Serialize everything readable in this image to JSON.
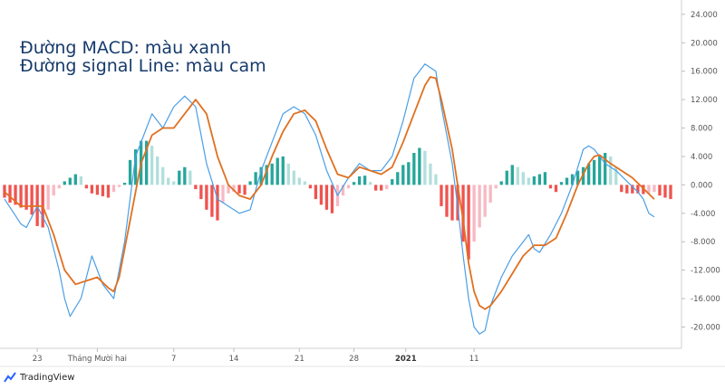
{
  "legend": {
    "macd_text": "Đường MACD: màu xanh",
    "signal_text": "Đường signal Line: màu cam"
  },
  "brand": {
    "name": "TradingView"
  },
  "colors": {
    "macd": "#4a9ee6",
    "signal": "#e07020",
    "hist_pos_strong": "#26a69a",
    "hist_pos_weak": "#b2dfdb",
    "hist_neg_strong": "#ef5350",
    "hist_neg_weak": "#f7b9c3",
    "grid": "#e8e8e8",
    "axis_text": "#555555"
  },
  "chart_data": {
    "type": "line",
    "grid": false,
    "ylim": [
      -23,
      25
    ],
    "y_ticks": [
      "24.000",
      "20.000",
      "16.000",
      "12.000",
      "8.000",
      "4.000",
      "0.000",
      "-4.000",
      "-8.000",
      "-12.000",
      "-16.000",
      "-20.000"
    ],
    "x_ticks": [
      {
        "label": "23",
        "x": 6,
        "bold": false
      },
      {
        "label": "Tháng Mười hai",
        "x": 17,
        "bold": false
      },
      {
        "label": "7",
        "x": 31,
        "bold": false
      },
      {
        "label": "14",
        "x": 42,
        "bold": false
      },
      {
        "label": "21",
        "x": 54,
        "bold": false
      },
      {
        "label": "28",
        "x": 64,
        "bold": false
      },
      {
        "label": "2021",
        "x": 73.5,
        "bold": true
      },
      {
        "label": "11",
        "x": 86,
        "bold": false
      }
    ],
    "x_range": [
      0,
      122
    ],
    "series": [
      {
        "key": "macd",
        "points": [
          [
            0,
            -2
          ],
          [
            3,
            -5.5
          ],
          [
            4,
            -6
          ],
          [
            6,
            -3
          ],
          [
            8,
            -6
          ],
          [
            10,
            -12
          ],
          [
            11,
            -16
          ],
          [
            12,
            -18.5
          ],
          [
            14,
            -16
          ],
          [
            16,
            -10
          ],
          [
            17,
            -12
          ],
          [
            18,
            -14
          ],
          [
            20,
            -16
          ],
          [
            22,
            -8
          ],
          [
            24,
            4
          ],
          [
            27,
            10
          ],
          [
            29,
            8
          ],
          [
            31,
            11
          ],
          [
            33,
            12.5
          ],
          [
            35,
            11
          ],
          [
            37,
            3
          ],
          [
            39,
            -2
          ],
          [
            41,
            -3
          ],
          [
            43,
            -4
          ],
          [
            45,
            -3.5
          ],
          [
            47,
            2
          ],
          [
            49,
            6
          ],
          [
            51,
            10
          ],
          [
            53,
            11
          ],
          [
            55,
            10
          ],
          [
            57,
            7
          ],
          [
            59,
            2
          ],
          [
            61,
            -1.5
          ],
          [
            63,
            1
          ],
          [
            65,
            3
          ],
          [
            67,
            2
          ],
          [
            69,
            2
          ],
          [
            71,
            4
          ],
          [
            73,
            9
          ],
          [
            75,
            15
          ],
          [
            77,
            17
          ],
          [
            79,
            16
          ],
          [
            80,
            11
          ],
          [
            82,
            3
          ],
          [
            83,
            -3
          ],
          [
            84,
            -10
          ],
          [
            85,
            -16
          ],
          [
            86,
            -20
          ],
          [
            87,
            -21
          ],
          [
            88,
            -20.5
          ],
          [
            89,
            -17
          ],
          [
            91,
            -13
          ],
          [
            93,
            -10
          ],
          [
            95,
            -8
          ],
          [
            96,
            -7
          ],
          [
            97,
            -9
          ],
          [
            98,
            -9.5
          ],
          [
            100,
            -7
          ],
          [
            102,
            -4
          ],
          [
            104,
            0
          ],
          [
            106,
            5
          ],
          [
            107,
            5.5
          ],
          [
            108,
            5
          ],
          [
            110,
            3
          ],
          [
            112,
            2
          ],
          [
            114,
            0.5
          ],
          [
            116,
            -1
          ],
          [
            117,
            -2
          ],
          [
            118,
            -4
          ],
          [
            119,
            -4.5
          ]
        ]
      },
      {
        "key": "signal",
        "points": [
          [
            0,
            -1
          ],
          [
            3,
            -3
          ],
          [
            5,
            -3
          ],
          [
            7,
            -3
          ],
          [
            9,
            -7
          ],
          [
            11,
            -12
          ],
          [
            13,
            -14
          ],
          [
            15,
            -13.5
          ],
          [
            17,
            -13
          ],
          [
            19,
            -14.5
          ],
          [
            20,
            -15
          ],
          [
            21,
            -13
          ],
          [
            23,
            -5
          ],
          [
            25,
            3
          ],
          [
            27,
            7
          ],
          [
            29,
            8
          ],
          [
            31,
            8
          ],
          [
            33,
            10
          ],
          [
            35,
            12
          ],
          [
            37,
            10
          ],
          [
            39,
            4
          ],
          [
            41,
            0
          ],
          [
            43,
            -1.5
          ],
          [
            45,
            -2
          ],
          [
            47,
            0
          ],
          [
            49,
            4
          ],
          [
            51,
            7.5
          ],
          [
            53,
            10
          ],
          [
            55,
            10.5
          ],
          [
            57,
            9
          ],
          [
            59,
            5
          ],
          [
            61,
            1.5
          ],
          [
            63,
            1
          ],
          [
            65,
            2.5
          ],
          [
            67,
            2
          ],
          [
            69,
            1.5
          ],
          [
            71,
            2.5
          ],
          [
            73,
            6
          ],
          [
            75,
            10
          ],
          [
            77,
            14
          ],
          [
            78,
            15.2
          ],
          [
            79,
            15
          ],
          [
            80,
            12
          ],
          [
            82,
            5
          ],
          [
            83,
            0
          ],
          [
            84,
            -5
          ],
          [
            85,
            -11
          ],
          [
            86,
            -15
          ],
          [
            87,
            -17
          ],
          [
            88,
            -17.5
          ],
          [
            89,
            -17
          ],
          [
            91,
            -15
          ],
          [
            93,
            -12.5
          ],
          [
            95,
            -10
          ],
          [
            97,
            -8.5
          ],
          [
            99,
            -8.5
          ],
          [
            101,
            -7.5
          ],
          [
            103,
            -4
          ],
          [
            105,
            0
          ],
          [
            107,
            3
          ],
          [
            108,
            4
          ],
          [
            109,
            4.2
          ],
          [
            111,
            3
          ],
          [
            113,
            2
          ],
          [
            115,
            1
          ],
          [
            117,
            -0.5
          ],
          [
            119,
            -2
          ]
        ]
      }
    ],
    "histogram": [
      [
        0,
        -1.8
      ],
      [
        1,
        -2.5
      ],
      [
        2,
        -2.8
      ],
      [
        3,
        -3.2
      ],
      [
        4,
        -3.5
      ],
      [
        5,
        -4.2
      ],
      [
        6,
        -5.8
      ],
      [
        7,
        -6
      ],
      [
        8,
        -3.5
      ],
      [
        9,
        -1.5
      ],
      [
        10,
        -0.5
      ],
      [
        11,
        0.5
      ],
      [
        12,
        1
      ],
      [
        13,
        1.5
      ],
      [
        14,
        1.2
      ],
      [
        15,
        -0.5
      ],
      [
        16,
        -1.2
      ],
      [
        17,
        -1.4
      ],
      [
        18,
        -1.6
      ],
      [
        19,
        -1.8
      ],
      [
        20,
        -1
      ],
      [
        21,
        -0.3
      ],
      [
        22,
        0.3
      ],
      [
        23,
        3.5
      ],
      [
        24,
        5
      ],
      [
        25,
        6.2
      ],
      [
        26,
        6.2
      ],
      [
        27,
        5.5
      ],
      [
        28,
        4
      ],
      [
        29,
        2.5
      ],
      [
        30,
        1
      ],
      [
        31,
        0.5
      ],
      [
        32,
        2
      ],
      [
        33,
        2.5
      ],
      [
        34,
        2
      ],
      [
        35,
        -0.6
      ],
      [
        36,
        -2
      ],
      [
        37,
        -3.5
      ],
      [
        38,
        -4.5
      ],
      [
        39,
        -5
      ],
      [
        40,
        -2.5
      ],
      [
        41,
        -1.2
      ],
      [
        42,
        -1
      ],
      [
        43,
        -1.2
      ],
      [
        44,
        -1.4
      ],
      [
        45,
        0.5
      ],
      [
        46,
        1.8
      ],
      [
        47,
        2.5
      ],
      [
        48,
        2.8
      ],
      [
        49,
        3
      ],
      [
        50,
        3.8
      ],
      [
        51,
        4
      ],
      [
        52,
        3
      ],
      [
        53,
        2
      ],
      [
        54,
        1
      ],
      [
        55,
        0.5
      ],
      [
        56,
        -0.5
      ],
      [
        57,
        -2
      ],
      [
        58,
        -2.8
      ],
      [
        59,
        -3.5
      ],
      [
        60,
        -4
      ],
      [
        61,
        -3
      ],
      [
        62,
        -1.5
      ],
      [
        63,
        -0.5
      ],
      [
        64,
        0.4
      ],
      [
        65,
        1.2
      ],
      [
        66,
        1.3
      ],
      [
        67,
        0.4
      ],
      [
        68,
        -0.8
      ],
      [
        69,
        -0.8
      ],
      [
        70,
        -0.6
      ],
      [
        71,
        0.8
      ],
      [
        72,
        1.8
      ],
      [
        73,
        2.8
      ],
      [
        74,
        3.2
      ],
      [
        75,
        4.5
      ],
      [
        76,
        5.2
      ],
      [
        77,
        4.8
      ],
      [
        78,
        3
      ],
      [
        79,
        1.5
      ],
      [
        80,
        -3
      ],
      [
        81,
        -4.5
      ],
      [
        82,
        -5
      ],
      [
        83,
        -5
      ],
      [
        84,
        -8
      ],
      [
        85,
        -10.5
      ],
      [
        86,
        -8
      ],
      [
        87,
        -6
      ],
      [
        88,
        -4.5
      ],
      [
        89,
        -2.5
      ],
      [
        90,
        -0.5
      ],
      [
        91,
        0.5
      ],
      [
        92,
        2
      ],
      [
        93,
        2.8
      ],
      [
        94,
        2.5
      ],
      [
        95,
        1.8
      ],
      [
        96,
        1
      ],
      [
        97,
        1.2
      ],
      [
        98,
        1.5
      ],
      [
        99,
        1.8
      ],
      [
        100,
        -0.5
      ],
      [
        101,
        -1
      ],
      [
        102,
        0.4
      ],
      [
        103,
        1
      ],
      [
        104,
        1.5
      ],
      [
        105,
        2
      ],
      [
        106,
        2.5
      ],
      [
        107,
        3
      ],
      [
        108,
        3.5
      ],
      [
        109,
        4
      ],
      [
        110,
        4.5
      ],
      [
        111,
        4
      ],
      [
        112,
        2.5
      ],
      [
        113,
        -1
      ],
      [
        114,
        -1.2
      ],
      [
        115,
        -1.2
      ],
      [
        116,
        -1.2
      ],
      [
        117,
        -1.3
      ],
      [
        118,
        -1.2
      ],
      [
        119,
        -1
      ],
      [
        120,
        -1.5
      ],
      [
        121,
        -1.8
      ],
      [
        122,
        -2
      ]
    ]
  }
}
